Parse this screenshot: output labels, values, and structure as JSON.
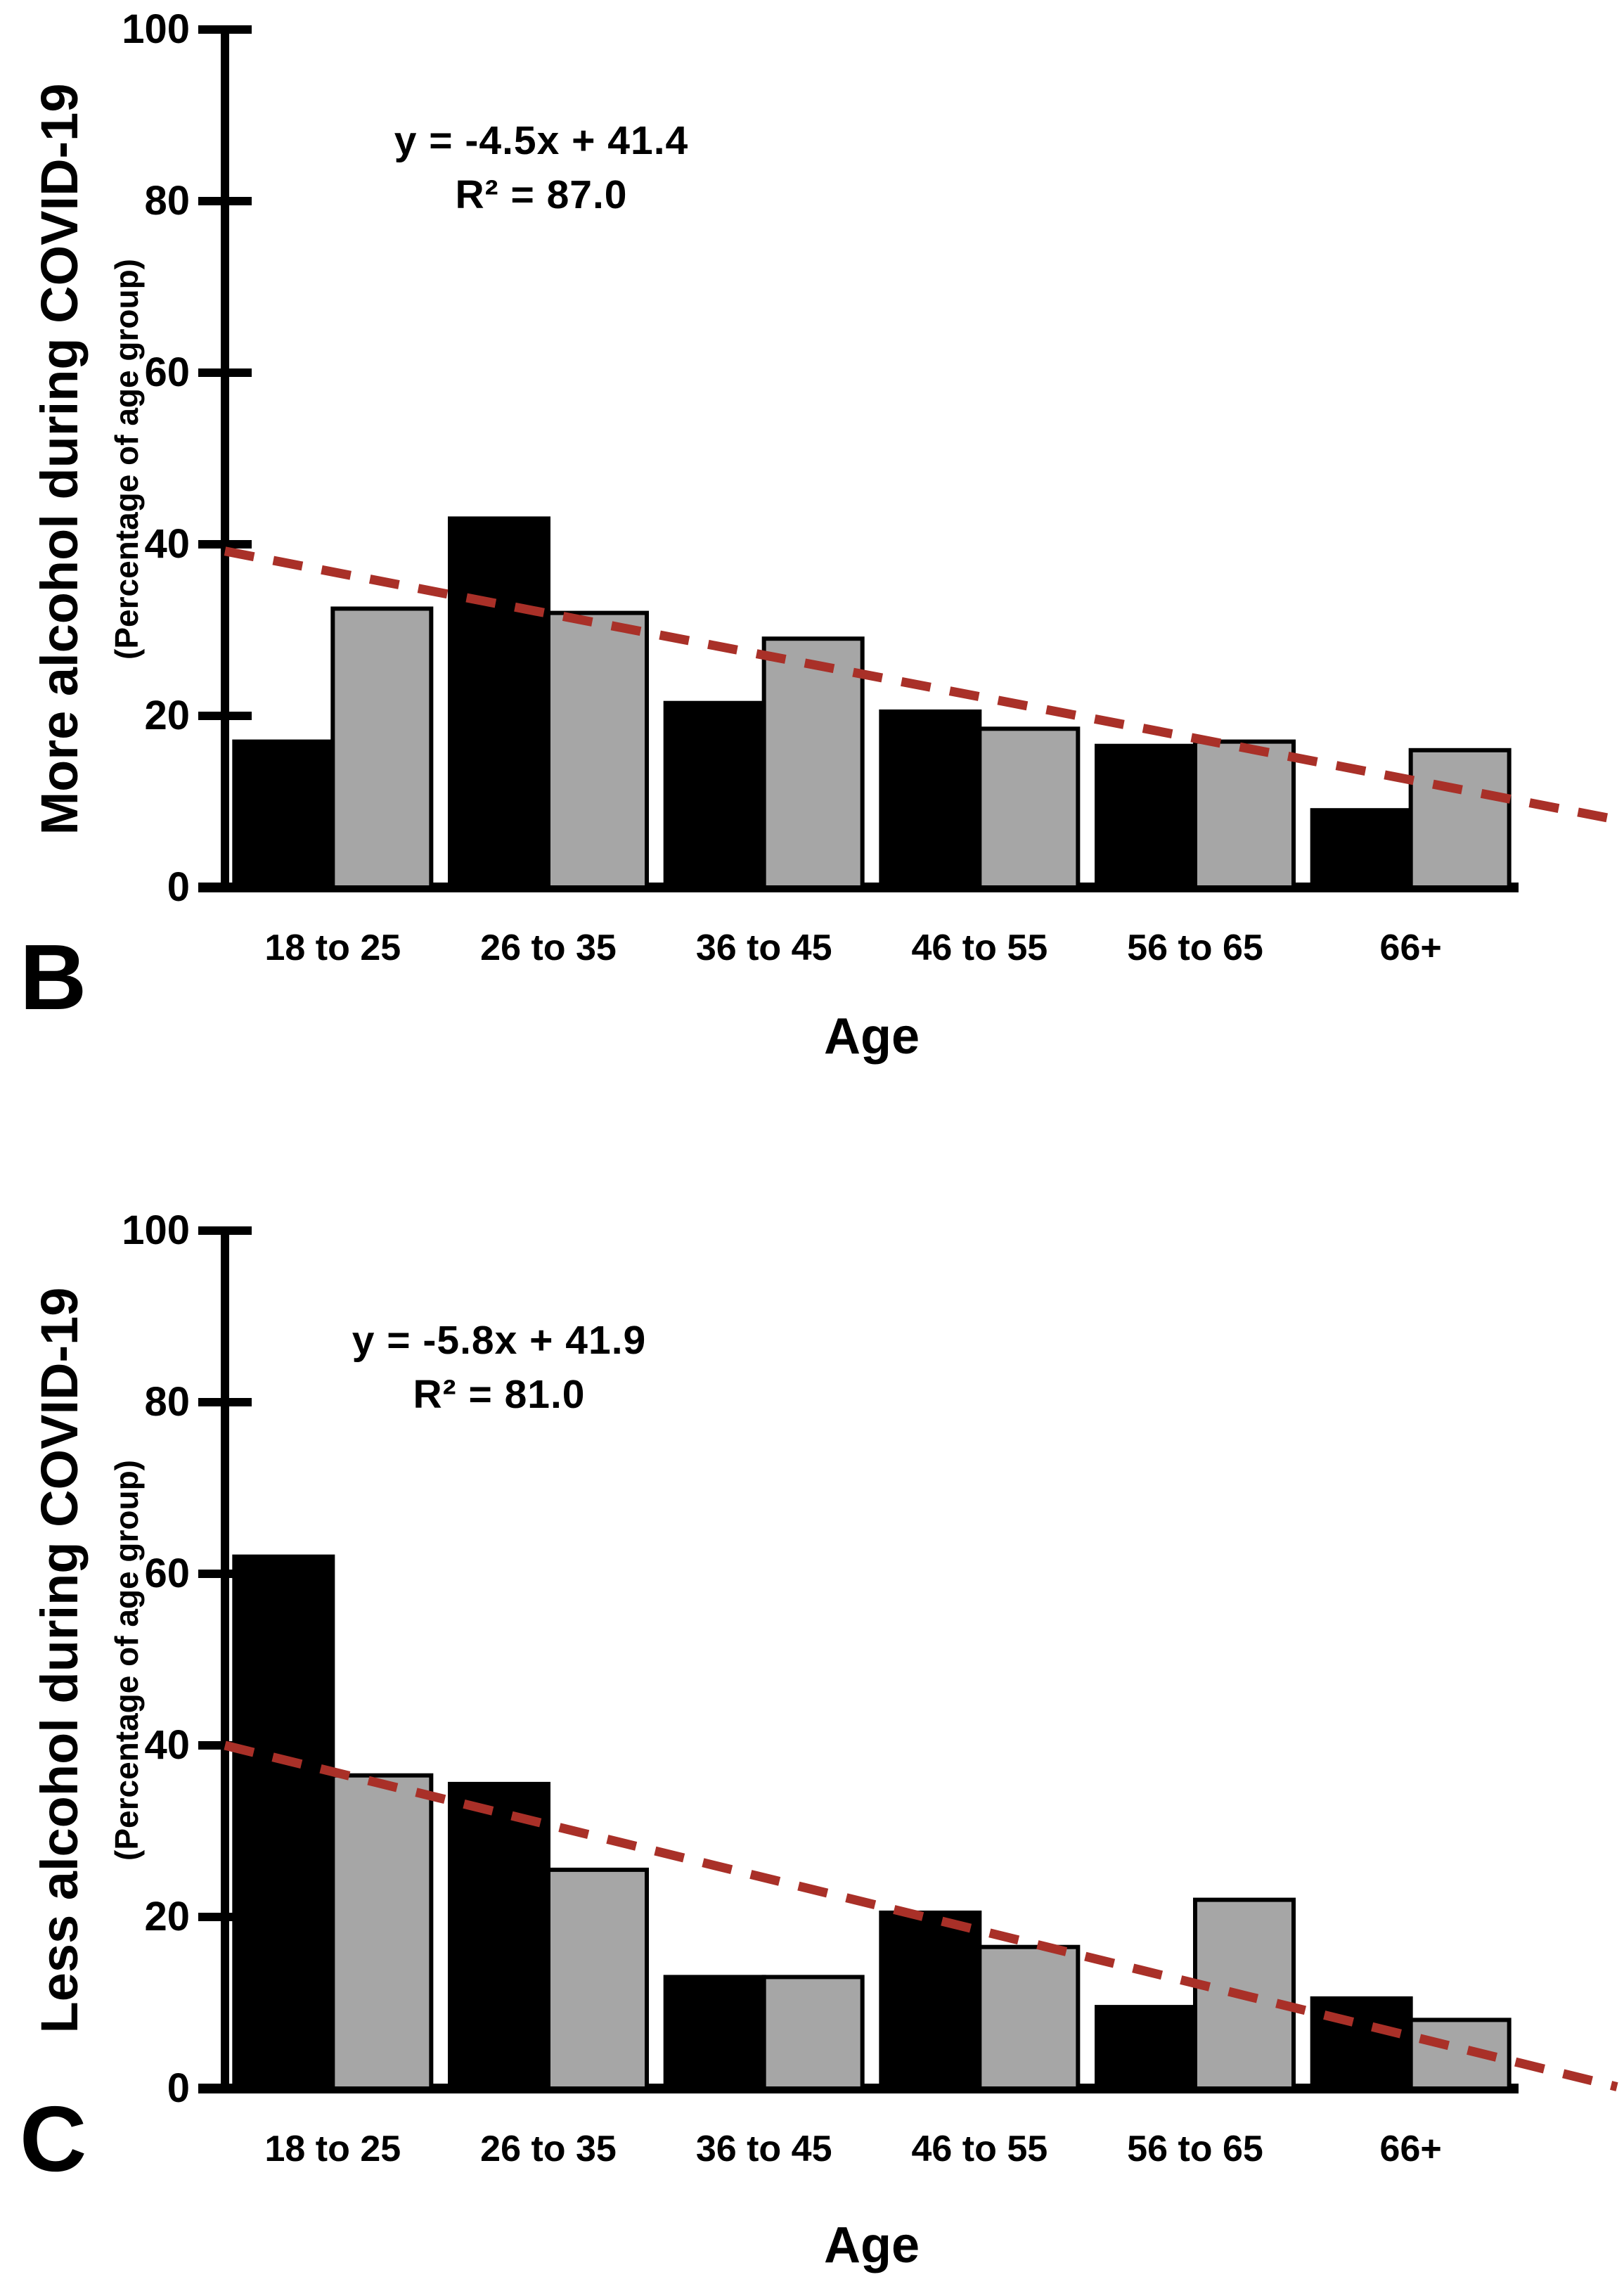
{
  "figure": {
    "background_color": "#ffffff",
    "text_color": "#000000",
    "trend_color": "#a93028",
    "gray_bar_color": "#a6a6a6",
    "black_bar_color": "#000000"
  },
  "panels": [
    {
      "panel_label": "B",
      "y_axis_label": "More alcohol during COVID-19",
      "y_axis_sublabel": "(Percentage of age group)",
      "x_axis_label": "Age",
      "equation": "y = -4.5x + 41.4",
      "r_squared": "R² = 87.0"
    },
    {
      "panel_label": "C",
      "y_axis_label": "Less alcohol during COVID-19",
      "y_axis_sublabel": "(Percentage of age group)",
      "x_axis_label": "Age",
      "equation": "y = -5.8x + 41.9",
      "r_squared": "R² = 81.0"
    }
  ],
  "chart_data": [
    {
      "type": "bar",
      "title": "Panel B: More alcohol during COVID-19",
      "categories": [
        "18 to 25",
        "26 to 35",
        "36 to 45",
        "46 to 55",
        "56 to 65",
        "66+"
      ],
      "series": [
        {
          "name": "black",
          "color": "#000000",
          "values": [
            17,
            43,
            21.5,
            20.5,
            16.5,
            9
          ]
        },
        {
          "name": "gray",
          "color": "#a6a6a6",
          "values": [
            32.5,
            32,
            29,
            18.5,
            17,
            16
          ]
        }
      ],
      "trendline": {
        "label": "y = -4.5x + 41.4",
        "r2_label": "R² = 87.0",
        "style": "dashed",
        "color": "#a93028",
        "start_value": 39.2,
        "end_value": 7.9
      },
      "xlabel": "Age",
      "ylabel": "More alcohol during COVID-19 (Percentage of age group)",
      "ylim": [
        0,
        100
      ],
      "yticks": [
        0,
        20,
        40,
        60,
        80,
        100
      ],
      "grid": false,
      "legend": "none"
    },
    {
      "type": "bar",
      "title": "Panel C: Less alcohol during COVID-19",
      "categories": [
        "18 to 25",
        "26 to 35",
        "36 to 45",
        "46 to 55",
        "56 to 65",
        "66+"
      ],
      "series": [
        {
          "name": "black",
          "color": "#000000",
          "values": [
            62,
            35.5,
            13,
            20.5,
            9.5,
            10.5
          ]
        },
        {
          "name": "gray",
          "color": "#a6a6a6",
          "values": [
            36.5,
            25.5,
            13,
            16.5,
            22,
            8
          ]
        }
      ],
      "trendline": {
        "label": "y = -5.8x + 41.9",
        "r2_label": "R² = 81.0",
        "style": "dashed",
        "color": "#a93028",
        "start_value": 40,
        "end_value": 0.2
      },
      "xlabel": "Age",
      "ylabel": "Less alcohol during COVID-19 (Percentage of age group)",
      "ylim": [
        0,
        100
      ],
      "yticks": [
        0,
        20,
        40,
        60,
        80,
        100
      ],
      "grid": false,
      "legend": "none"
    }
  ]
}
